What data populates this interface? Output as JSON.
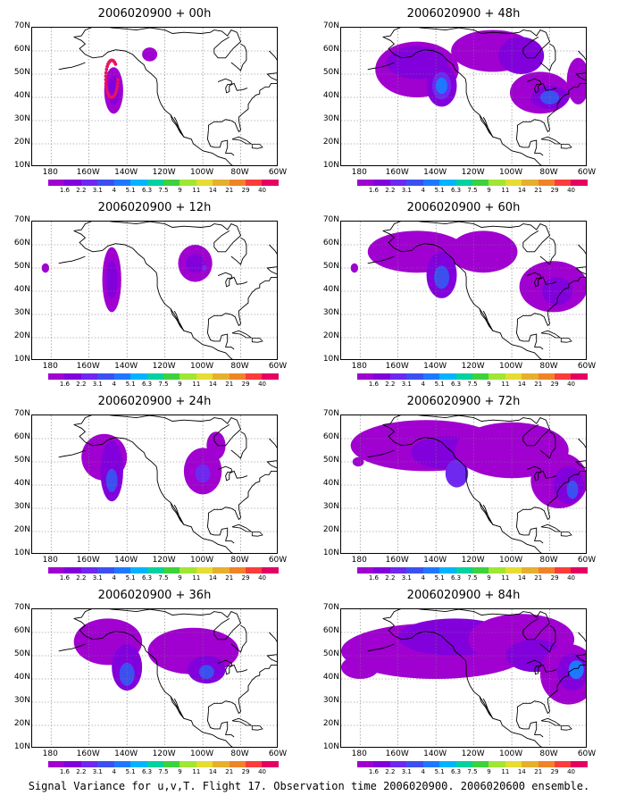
{
  "panels": [
    {
      "title": "2006020900 + 00h"
    },
    {
      "title": "2006020900 + 48h"
    },
    {
      "title": "2006020900 + 12h"
    },
    {
      "title": "2006020900 + 60h"
    },
    {
      "title": "2006020900 + 24h"
    },
    {
      "title": "2006020900 + 72h"
    },
    {
      "title": "2006020900 + 36h"
    },
    {
      "title": "2006020900 + 84h"
    }
  ],
  "axes": {
    "lat_labels": [
      "70N",
      "60N",
      "50N",
      "40N",
      "30N",
      "20N",
      "10N"
    ],
    "lon_labels": [
      "180",
      "160W",
      "140W",
      "120W",
      "100W",
      "80W",
      "60W"
    ]
  },
  "colorbar": {
    "labels": [
      "1.6",
      "2.2",
      "3.1",
      "4",
      "5.1",
      "6.3",
      "7.5",
      "9",
      "11",
      "14",
      "21",
      "29",
      "40"
    ],
    "colors": [
      "#a000d0",
      "#8200dc",
      "#6e28f0",
      "#3c50f0",
      "#1e78ff",
      "#00b4ff",
      "#00d2a0",
      "#3cd23c",
      "#a0e632",
      "#e6dc32",
      "#e6af2d",
      "#f08228",
      "#fa3c3c",
      "#e60064"
    ]
  },
  "caption": "Signal Variance for u,v,T. Flight 17. Observation time 2006020900. 2006020600 ensemble."
}
